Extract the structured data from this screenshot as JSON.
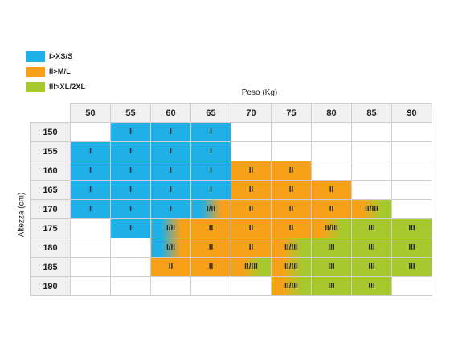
{
  "legend": [
    {
      "label": "I>XS/S",
      "color": "#1fb0e8"
    },
    {
      "label": "II>M/L",
      "color": "#f7a11a"
    },
    {
      "label": "III>XL/2XL",
      "color": "#a8c92d"
    }
  ],
  "colors": {
    "I": "#1fb0e8",
    "II": "#f7a11a",
    "III": "#a8c92d",
    "empty": "#ffffff",
    "header": "#f0f0f0"
  },
  "chart_data": {
    "type": "table",
    "xlabel": "Peso (Kg)",
    "ylabel": "Altezza (cm)",
    "columns": [
      "50",
      "55",
      "60",
      "65",
      "70",
      "75",
      "80",
      "85",
      "90"
    ],
    "rows": [
      {
        "height": "150",
        "cells": [
          "",
          "I",
          "I",
          "I",
          "",
          "",
          "",
          "",
          ""
        ]
      },
      {
        "height": "155",
        "cells": [
          "I",
          "I",
          "I",
          "I",
          "",
          "",
          "",
          "",
          ""
        ]
      },
      {
        "height": "160",
        "cells": [
          "I",
          "I",
          "I",
          "I",
          "II",
          "II",
          "",
          "",
          ""
        ]
      },
      {
        "height": "165",
        "cells": [
          "I",
          "I",
          "I",
          "I",
          "II",
          "II",
          "II",
          "",
          ""
        ]
      },
      {
        "height": "170",
        "cells": [
          "I",
          "I",
          "I",
          "I/II",
          "II",
          "II",
          "II",
          "II/III",
          ""
        ]
      },
      {
        "height": "175",
        "cells": [
          "",
          "I",
          "I/II",
          "II",
          "II",
          "II",
          "II/III",
          "III",
          "III"
        ]
      },
      {
        "height": "180",
        "cells": [
          "",
          "",
          "I/II",
          "II",
          "II",
          "II/III",
          "III",
          "III",
          "III"
        ]
      },
      {
        "height": "185",
        "cells": [
          "",
          "",
          "II",
          "II",
          "II/III",
          "II/III",
          "III",
          "III",
          "III"
        ]
      },
      {
        "height": "190",
        "cells": [
          "",
          "",
          "",
          "",
          "",
          "II/III",
          "III",
          "III",
          ""
        ]
      }
    ]
  }
}
